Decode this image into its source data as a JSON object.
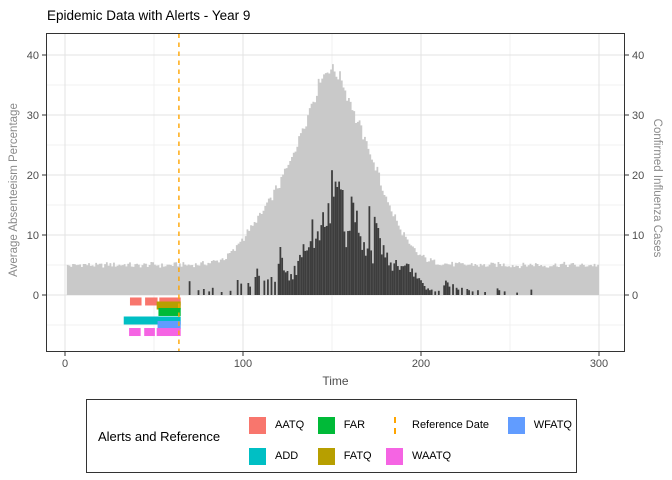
{
  "chart_data": {
    "type": "composite",
    "title": "Epidemic Data with Alerts - Year 9",
    "xlabel": "Time",
    "ylabel_left": "Average Absenteeism Percentage",
    "ylabel_right": "Confirmed Influenza Cases",
    "x_ticks": [
      0,
      100,
      200,
      300
    ],
    "x_minor_gridlines": [
      50,
      150,
      250
    ],
    "y_ticks": [
      0,
      10,
      20,
      30,
      40
    ],
    "y_minor_gridlines": [
      -5,
      5,
      15,
      25,
      35
    ],
    "xlim": [
      -10.7,
      314.6
    ],
    "ylim": [
      -9.5,
      43.7
    ],
    "grid": true,
    "legend_position": "bottom",
    "series": [
      {
        "name": "Average Absenteeism Percentage",
        "type": "area",
        "axis": "left",
        "color": "#c9c9c9",
        "x_start": 0,
        "x_step": 5,
        "y": [
          5.0,
          4.9,
          5.1,
          5.0,
          4.9,
          5.1,
          5.0,
          5.1,
          4.9,
          5.0,
          5.1,
          4.9,
          5.0,
          5.1,
          5.0,
          5.1,
          5.3,
          5.6,
          6.1,
          7.3,
          9.3,
          11.2,
          13.2,
          15.5,
          18.0,
          21.0,
          24.5,
          28.5,
          32.5,
          36.6,
          37.8,
          36.4,
          32.8,
          28.8,
          25.3,
          21.3,
          17.0,
          13.4,
          10.4,
          8.0,
          6.6,
          5.8,
          5.4,
          5.2,
          5.1,
          5.0,
          5.1,
          4.9,
          5.0,
          5.1,
          5.0,
          4.9,
          5.0,
          5.1,
          4.9,
          5.0,
          5.1,
          5.0,
          4.9,
          5.0,
          5.0
        ]
      },
      {
        "name": "Confirmed Influenza Cases",
        "type": "bars",
        "axis": "right",
        "color": "#3d3d3d",
        "dense": {
          "x_start": 124,
          "x_end": 200,
          "x_step": 4,
          "envelope": [
            3.5,
            4.2,
            5.5,
            7.5,
            9.0,
            11.0,
            12.5,
            13.0,
            12.5,
            11.0,
            10.0,
            9.5,
            9.5,
            8.0,
            6.5,
            5.5,
            4.5,
            3.8,
            3.0,
            2.5
          ]
        },
        "noise_multiplier": [
          0.5,
          1.55
        ],
        "spikes": [
          [
            139,
            12.6
          ],
          [
            145,
            13.8
          ],
          [
            148,
            15.3
          ],
          [
            150,
            20.8
          ],
          [
            152,
            18.9
          ],
          [
            156,
            17.5
          ],
          [
            161,
            16.4
          ],
          [
            171,
            14.8
          ]
        ],
        "sparse_points": [
          [
            70,
            2.3
          ],
          [
            75,
            0.8
          ],
          [
            78,
            1.0
          ],
          [
            81,
            0.6
          ],
          [
            83,
            1.2
          ],
          [
            88,
            0.5
          ],
          [
            93,
            0.7
          ],
          [
            97,
            2.5
          ],
          [
            99,
            1.9
          ],
          [
            103,
            2.0
          ],
          [
            104,
            1.4
          ],
          [
            107,
            3.0
          ],
          [
            108,
            4.4
          ],
          [
            109,
            3.2
          ],
          [
            112,
            2.4
          ],
          [
            114,
            2.6
          ],
          [
            116,
            3.0
          ],
          [
            118,
            2.2
          ],
          [
            120,
            5.2
          ],
          [
            121,
            8.0
          ],
          [
            122,
            6.2
          ],
          [
            123,
            4.1
          ],
          [
            201,
            2.0
          ],
          [
            202,
            1.5
          ],
          [
            203,
            0.9
          ],
          [
            204,
            1.1
          ],
          [
            205,
            0.8
          ],
          [
            206,
            0.9
          ],
          [
            208,
            0.6
          ],
          [
            210,
            0.7
          ],
          [
            213,
            1.6
          ],
          [
            214,
            2.4
          ],
          [
            215,
            2.1
          ],
          [
            216,
            1.4
          ],
          [
            218,
            1.8
          ],
          [
            220,
            1.2
          ],
          [
            221,
            0.9
          ],
          [
            223,
            1.2
          ],
          [
            226,
            1.0
          ],
          [
            227,
            0.8
          ],
          [
            229,
            0.6
          ],
          [
            232,
            0.8
          ],
          [
            236,
            0.5
          ],
          [
            243,
            1.1
          ],
          [
            244,
            0.8
          ],
          [
            247,
            0.6
          ],
          [
            254,
            0.4
          ],
          [
            262,
            0.9
          ]
        ]
      }
    ],
    "reference_date": {
      "label": "Reference Date",
      "x": 64,
      "color": "#FFA500",
      "line_style": "dashed"
    },
    "alerts": [
      {
        "name": "AATQ",
        "color": "#F8766D",
        "y": -1.08,
        "segments": [
          [
            36.5,
            43
          ],
          [
            45,
            52
          ],
          [
            53,
            65
          ]
        ]
      },
      {
        "name": "FATQ",
        "color": "#B79F00",
        "y": -1.75,
        "segments": [
          [
            51.5,
            65
          ]
        ]
      },
      {
        "name": "FAR",
        "color": "#00BA38",
        "y": -2.83,
        "segments": [
          [
            52.5,
            65
          ]
        ]
      },
      {
        "name": "ADD",
        "color": "#00BFC4",
        "y": -4.25,
        "segments": [
          [
            33,
            65
          ]
        ]
      },
      {
        "name": "WFATQ",
        "color": "#619CFF",
        "y": -5.0,
        "segments": [
          [
            52,
            65
          ]
        ]
      },
      {
        "name": "WAATQ",
        "color": "#F564E3",
        "y": -6.17,
        "segments": [
          [
            36,
            42.5
          ],
          [
            44.5,
            50.5
          ],
          [
            51.5,
            65
          ]
        ]
      }
    ],
    "noise_amplitude": 0.35
  },
  "legend": {
    "title": "Alerts and Reference",
    "items": [
      {
        "label": "AATQ",
        "color": "#F8766D",
        "key": "swatch"
      },
      {
        "label": "ADD",
        "color": "#00BFC4",
        "key": "swatch"
      },
      {
        "label": "FAR",
        "color": "#00BA38",
        "key": "swatch"
      },
      {
        "label": "FATQ",
        "color": "#B79F00",
        "key": "swatch"
      },
      {
        "label": "Reference Date",
        "color": "#FFA500",
        "key": "dashed-line"
      },
      {
        "label": "WAATQ",
        "color": "#F564E3",
        "key": "swatch"
      },
      {
        "label": "WFATQ",
        "color": "#619CFF",
        "key": "swatch"
      }
    ]
  }
}
